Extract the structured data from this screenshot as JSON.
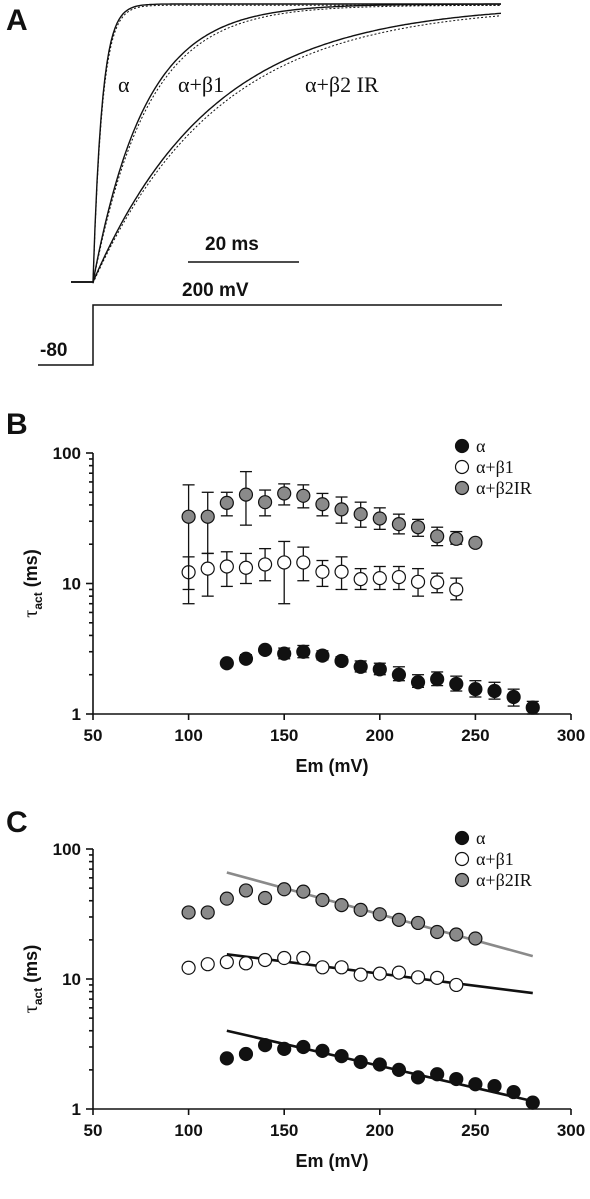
{
  "panels": {
    "a": {
      "letter": "A",
      "trace_labels": [
        "α",
        "α+β1",
        "α+β2 IR"
      ],
      "time_scale": "20 ms",
      "voltage_scale": "200 mV",
      "holding_label": "-80"
    },
    "b": {
      "letter": "B"
    },
    "c": {
      "letter": "C"
    }
  },
  "colors": {
    "alpha": "#111111",
    "beta1": "#ffffff",
    "beta2": "#8a8a8a",
    "fit_beta2": "#8a8a8a",
    "fit_other": "#111111"
  },
  "chart_data": [
    {
      "type": "scatter",
      "panel": "B",
      "xlabel": "Em (mV)",
      "ylabel_main": "τ",
      "ylabel_sub": "act",
      "ylabel_unit": " (ms)",
      "xlim": [
        50,
        300
      ],
      "ylim": [
        1,
        100
      ],
      "yscale": "log",
      "xticks": [
        50,
        100,
        150,
        200,
        250,
        300
      ],
      "yticks": [
        1,
        10,
        100
      ],
      "legend_position": "top-right",
      "series": [
        {
          "name": "α",
          "x": [
            120,
            130,
            140,
            150,
            160,
            170,
            180,
            190,
            200,
            210,
            220,
            230,
            240,
            250,
            260,
            270,
            280
          ],
          "y": [
            2.45,
            2.65,
            3.1,
            2.9,
            3.0,
            2.8,
            2.55,
            2.3,
            2.2,
            2.0,
            1.75,
            1.85,
            1.7,
            1.55,
            1.5,
            1.35,
            1.12
          ],
          "err_up": [
            2.55,
            2.85,
            3.3,
            3.2,
            3.35,
            3.05,
            2.75,
            2.55,
            2.45,
            2.3,
            2.0,
            2.1,
            1.95,
            1.8,
            1.75,
            1.55,
            1.25
          ],
          "err_down": [
            2.35,
            2.5,
            2.95,
            2.65,
            2.7,
            2.6,
            2.4,
            2.1,
            2.0,
            1.8,
            1.6,
            1.65,
            1.5,
            1.35,
            1.3,
            1.15,
            1.0
          ]
        },
        {
          "name": "α+β1",
          "x": [
            100,
            110,
            120,
            130,
            140,
            150,
            160,
            170,
            180,
            190,
            200,
            210,
            220,
            230,
            240
          ],
          "y": [
            12.2,
            13.0,
            13.5,
            13.2,
            14.0,
            14.5,
            14.5,
            12.3,
            12.3,
            10.8,
            11.0,
            11.2,
            10.3,
            10.2,
            9.0
          ],
          "err_up": [
            16.0,
            17.0,
            17.5,
            17.0,
            18.5,
            21.0,
            19.0,
            15.0,
            16.0,
            13.0,
            13.5,
            13.5,
            13.0,
            12.0,
            11.0
          ],
          "err_down": [
            7.0,
            8.0,
            9.5,
            10.0,
            10.5,
            7.0,
            10.5,
            9.5,
            9.0,
            9.0,
            9.0,
            9.0,
            8.0,
            8.5,
            7.5
          ]
        },
        {
          "name": "α+β2IR",
          "x": [
            100,
            110,
            120,
            130,
            140,
            150,
            160,
            170,
            180,
            190,
            200,
            210,
            220,
            230,
            240,
            250
          ],
          "y": [
            32.5,
            32.5,
            41.5,
            48.0,
            42.0,
            49.0,
            47.0,
            40.5,
            37.0,
            34.0,
            31.5,
            28.5,
            27.0,
            23.0,
            22.0,
            20.5
          ],
          "err_up": [
            57.0,
            50.0,
            50.0,
            72.0,
            52.0,
            58.0,
            57.0,
            49.0,
            46.0,
            42.0,
            38.0,
            34.0,
            31.0,
            27.0,
            25.0,
            21.5
          ],
          "err_down": [
            9.0,
            17.0,
            33.0,
            28.0,
            33.0,
            40.0,
            38.0,
            33.0,
            29.0,
            27.0,
            26.0,
            24.0,
            23.0,
            19.5,
            20.0,
            19.5
          ]
        }
      ]
    },
    {
      "type": "scatter",
      "panel": "C",
      "xlabel": "Em (mV)",
      "ylabel_main": "τ",
      "ylabel_sub": "act",
      "ylabel_unit": " (ms)",
      "xlim": [
        50,
        300
      ],
      "ylim": [
        1,
        100
      ],
      "yscale": "log",
      "xticks": [
        50,
        100,
        150,
        200,
        250,
        300
      ],
      "yticks": [
        1,
        10,
        100
      ],
      "legend_position": "top-right",
      "series": [
        {
          "name": "α",
          "x": [
            120,
            130,
            140,
            150,
            160,
            170,
            180,
            190,
            200,
            210,
            220,
            230,
            240,
            250,
            260,
            270,
            280
          ],
          "y": [
            2.45,
            2.65,
            3.1,
            2.9,
            3.0,
            2.8,
            2.55,
            2.3,
            2.2,
            2.0,
            1.75,
            1.85,
            1.7,
            1.55,
            1.5,
            1.35,
            1.12
          ]
        },
        {
          "name": "α+β1",
          "x": [
            100,
            110,
            120,
            130,
            140,
            150,
            160,
            170,
            180,
            190,
            200,
            210,
            220,
            230,
            240
          ],
          "y": [
            12.2,
            13.0,
            13.5,
            13.2,
            14.0,
            14.5,
            14.5,
            12.3,
            12.3,
            10.8,
            11.0,
            11.2,
            10.3,
            10.2,
            9.0
          ]
        },
        {
          "name": "α+β2IR",
          "x": [
            100,
            110,
            120,
            130,
            140,
            150,
            160,
            170,
            180,
            190,
            200,
            210,
            220,
            230,
            240,
            250
          ],
          "y": [
            32.5,
            32.5,
            41.5,
            48.0,
            42.0,
            49.0,
            47.0,
            40.5,
            37.0,
            34.0,
            31.5,
            28.5,
            27.0,
            23.0,
            22.0,
            20.5
          ]
        }
      ],
      "fits": [
        {
          "series": "α",
          "x": [
            120,
            280
          ],
          "y": [
            4.0,
            1.15
          ]
        },
        {
          "series": "α+β1",
          "x": [
            120,
            280
          ],
          "y": [
            15.5,
            7.8
          ]
        },
        {
          "series": "α+β2IR",
          "x": [
            120,
            280
          ],
          "y": [
            66.0,
            15.0
          ]
        }
      ]
    }
  ]
}
